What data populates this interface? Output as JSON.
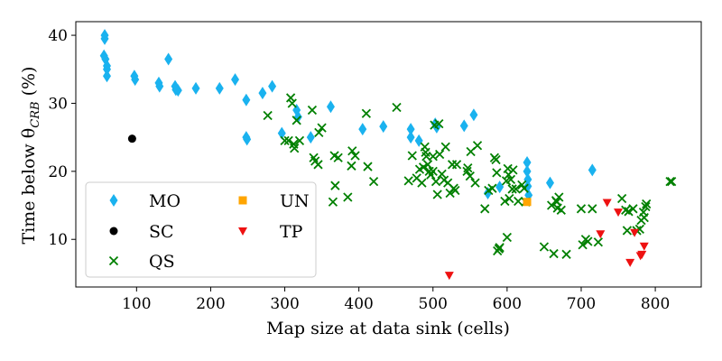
{
  "chart_data": {
    "type": "scatter",
    "xlabel": "Map size at data sink (cells)",
    "ylabel": "Time below θ",
    "ylabel_sub": "CRB",
    "ylabel_unit": " (%)",
    "xlim": [
      18,
      862
    ],
    "ylim": [
      3,
      42
    ],
    "xticks": [
      100,
      200,
      300,
      400,
      500,
      600,
      700,
      800
    ],
    "yticks": [
      10,
      20,
      30,
      40
    ],
    "legend": {
      "placement": "lower-left",
      "columns": 2
    },
    "series": [
      {
        "name": "MO",
        "marker": "diamond",
        "color": "#1ab2ef",
        "points": [
          [
            57,
            40
          ],
          [
            57,
            39.5
          ],
          [
            56,
            37
          ],
          [
            58,
            36.5
          ],
          [
            60,
            35.5
          ],
          [
            60,
            35
          ],
          [
            60,
            34
          ],
          [
            97,
            34
          ],
          [
            98,
            33.5
          ],
          [
            130,
            33
          ],
          [
            131,
            32.5
          ],
          [
            143,
            36.5
          ],
          [
            152,
            32.5
          ],
          [
            153,
            32
          ],
          [
            156,
            31.9
          ],
          [
            180,
            32.2
          ],
          [
            212,
            32.2
          ],
          [
            233,
            33.5
          ],
          [
            248,
            30.5
          ],
          [
            248,
            25
          ],
          [
            249,
            24.7
          ],
          [
            270,
            31.5
          ],
          [
            283,
            32.5
          ],
          [
            296,
            25.6
          ],
          [
            316,
            29
          ],
          [
            318,
            28
          ],
          [
            335,
            25
          ],
          [
            362,
            29.5
          ],
          [
            405,
            26.2
          ],
          [
            433,
            26.6
          ],
          [
            470,
            26.2
          ],
          [
            470,
            25
          ],
          [
            481,
            24.5
          ],
          [
            503,
            27
          ],
          [
            505,
            26.5
          ],
          [
            542,
            26.7
          ],
          [
            555,
            28.3
          ],
          [
            574,
            16.8
          ],
          [
            590,
            17.7
          ],
          [
            627,
            21.3
          ],
          [
            627,
            20
          ],
          [
            628,
            18.8
          ],
          [
            628,
            17.8
          ],
          [
            629,
            16.5
          ],
          [
            658,
            18.3
          ],
          [
            715,
            20.2
          ]
        ]
      },
      {
        "name": "SC",
        "marker": "circle",
        "color": "#000000",
        "points": [
          [
            94,
            24.8
          ]
        ]
      },
      {
        "name": "QS",
        "marker": "x",
        "color": "#008000",
        "points": [
          [
            277,
            28.2
          ],
          [
            300,
            24.5
          ],
          [
            305,
            24.5
          ],
          [
            308,
            30.8
          ],
          [
            310,
            30
          ],
          [
            312,
            24
          ],
          [
            313,
            23.4
          ],
          [
            316,
            27.5
          ],
          [
            320,
            24.5
          ],
          [
            337,
            29
          ],
          [
            339,
            22
          ],
          [
            341,
            21.5
          ],
          [
            345,
            21
          ],
          [
            346,
            25.7
          ],
          [
            350,
            26.4
          ],
          [
            365,
            15.5
          ],
          [
            367,
            22.3
          ],
          [
            368,
            17.9
          ],
          [
            372,
            22
          ],
          [
            385,
            16.2
          ],
          [
            390,
            20.8
          ],
          [
            391,
            23
          ],
          [
            395,
            22.3
          ],
          [
            410,
            28.5
          ],
          [
            412,
            20.7
          ],
          [
            420,
            18.5
          ],
          [
            451,
            29.4
          ],
          [
            467,
            18.6
          ],
          [
            472,
            22.3
          ],
          [
            478,
            19
          ],
          [
            482,
            20.3
          ],
          [
            485,
            18.3
          ],
          [
            487,
            20.6
          ],
          [
            489,
            23.6
          ],
          [
            490,
            22.8
          ],
          [
            491,
            22.2
          ],
          [
            493,
            21
          ],
          [
            495,
            20
          ],
          [
            497,
            19.5
          ],
          [
            500,
            22.2
          ],
          [
            500,
            20
          ],
          [
            502,
            26.8
          ],
          [
            504,
            18.5
          ],
          [
            506,
            16.6
          ],
          [
            508,
            27
          ],
          [
            509,
            22.5
          ],
          [
            512,
            19.6
          ],
          [
            515,
            18.7
          ],
          [
            517,
            23.6
          ],
          [
            520,
            18.3
          ],
          [
            523,
            16.8
          ],
          [
            526,
            21
          ],
          [
            528,
            17.5
          ],
          [
            530,
            17.2
          ],
          [
            532,
            21
          ],
          [
            546,
            20
          ],
          [
            547,
            20.5
          ],
          [
            550,
            19.3
          ],
          [
            551,
            22.9
          ],
          [
            557,
            18.3
          ],
          [
            560,
            23.8
          ],
          [
            570,
            14.5
          ],
          [
            575,
            17.2
          ],
          [
            580,
            17.5
          ],
          [
            583,
            22
          ],
          [
            585,
            21.7
          ],
          [
            586,
            19.8
          ],
          [
            587,
            8.3
          ],
          [
            589,
            8.6
          ],
          [
            590,
            8.8
          ],
          [
            597,
            15.6
          ],
          [
            599,
            18.6
          ],
          [
            600,
            10.3
          ],
          [
            601,
            20.4
          ],
          [
            602,
            19.5
          ],
          [
            603,
            16
          ],
          [
            605,
            18.8
          ],
          [
            607,
            17.4
          ],
          [
            608,
            20.2
          ],
          [
            612,
            17.4
          ],
          [
            615,
            15.6
          ],
          [
            620,
            18
          ],
          [
            623,
            17.5
          ],
          [
            625,
            15.5
          ],
          [
            650,
            8.9
          ],
          [
            660,
            15
          ],
          [
            663,
            7.9
          ],
          [
            666,
            15.7
          ],
          [
            667,
            15.5
          ],
          [
            668,
            14.6
          ],
          [
            670,
            16.2
          ],
          [
            673,
            14.3
          ],
          [
            680,
            7.8
          ],
          [
            700,
            14.5
          ],
          [
            702,
            9.2
          ],
          [
            706,
            10
          ],
          [
            709,
            9.7
          ],
          [
            715,
            14.5
          ],
          [
            723,
            9.6
          ],
          [
            755,
            16
          ],
          [
            760,
            14.3
          ],
          [
            762,
            11.3
          ],
          [
            764,
            14.1
          ],
          [
            770,
            14.5
          ],
          [
            775,
            11.3
          ],
          [
            779,
            11.5
          ],
          [
            781,
            12.8
          ],
          [
            784,
            14
          ],
          [
            785,
            13.2
          ],
          [
            787,
            14.8
          ],
          [
            788,
            15.2
          ],
          [
            820,
            18.5
          ],
          [
            822,
            18.5
          ]
        ]
      },
      {
        "name": "UN",
        "marker": "square",
        "color": "#ffa500",
        "points": [
          [
            627,
            15.5
          ]
        ]
      },
      {
        "name": "TP",
        "marker": "triangle-down",
        "color": "#ee1111",
        "points": [
          [
            522,
            4.7
          ],
          [
            726,
            10.8
          ],
          [
            735,
            15.4
          ],
          [
            750,
            14
          ],
          [
            766,
            6.6
          ],
          [
            772,
            11
          ],
          [
            780,
            7.6
          ],
          [
            782,
            7.8
          ],
          [
            785,
            9
          ]
        ]
      }
    ]
  }
}
